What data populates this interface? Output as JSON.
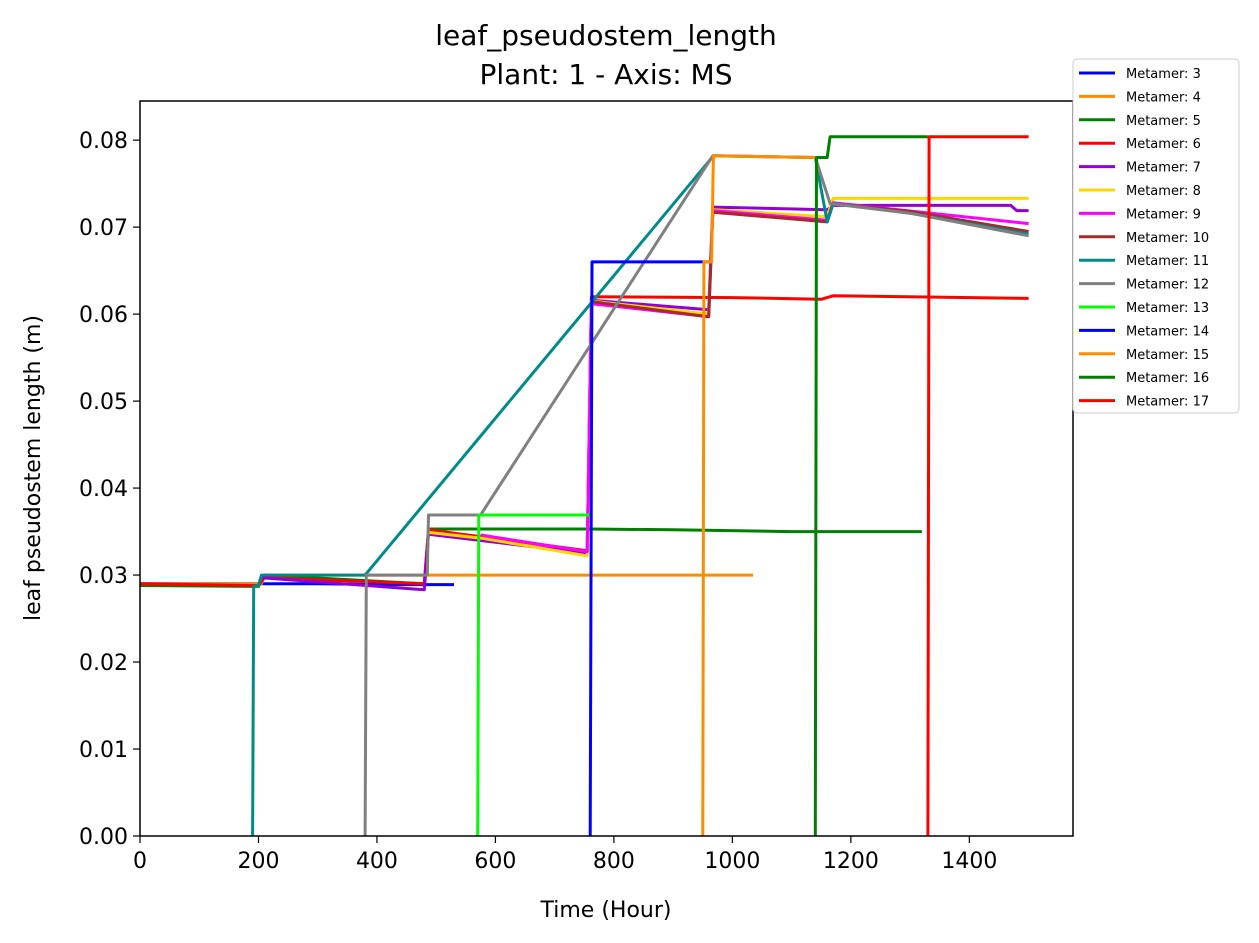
{
  "chart_data": {
    "type": "line",
    "title": "leaf_pseudostem_length",
    "subtitle": "Plant: 1 - Axis: MS",
    "xlabel": "Time (Hour)",
    "ylabel": "leaf pseudostem length (m)",
    "xlim": [
      0,
      1575
    ],
    "ylim": [
      0,
      0.0845
    ],
    "xticks": [
      0,
      200,
      400,
      600,
      800,
      1000,
      1200,
      1400
    ],
    "yticks": [
      0.0,
      0.01,
      0.02,
      0.03,
      0.04,
      0.05,
      0.06,
      0.07,
      0.08
    ],
    "ytick_labels": [
      "0.00",
      "0.01",
      "0.02",
      "0.03",
      "0.04",
      "0.05",
      "0.06",
      "0.07",
      "0.08"
    ],
    "grid": false,
    "legend_position": "outside-top-right",
    "series": [
      {
        "name": "Metamer: 3",
        "color": "#0000ff",
        "points": [
          [
            0,
            0.029
          ],
          [
            200,
            0.029
          ],
          [
            300,
            0.029
          ],
          [
            420,
            0.0289
          ],
          [
            480,
            0.0289
          ],
          [
            530,
            0.0289
          ]
        ]
      },
      {
        "name": "Metamer: 4",
        "color": "#ff8c00",
        "points": [
          [
            0,
            0.029
          ],
          [
            205,
            0.029
          ],
          [
            210,
            0.03
          ],
          [
            500,
            0.03
          ],
          [
            800,
            0.03
          ],
          [
            1035,
            0.03
          ]
        ]
      },
      {
        "name": "Metamer: 5",
        "color": "#008000",
        "points": [
          [
            0,
            0.0288
          ],
          [
            200,
            0.0287
          ],
          [
            210,
            0.03
          ],
          [
            480,
            0.029
          ],
          [
            487,
            0.0353
          ],
          [
            760,
            0.0353
          ],
          [
            900,
            0.0352
          ],
          [
            1100,
            0.035
          ],
          [
            1320,
            0.035
          ]
        ]
      },
      {
        "name": "Metamer: 6",
        "color": "#ff0000",
        "points": [
          [
            0,
            0.029
          ],
          [
            200,
            0.0288
          ],
          [
            210,
            0.0297
          ],
          [
            480,
            0.029
          ],
          [
            487,
            0.0352
          ],
          [
            755,
            0.0328
          ],
          [
            762,
            0.062
          ],
          [
            1000,
            0.0619
          ],
          [
            1150,
            0.0617
          ],
          [
            1170,
            0.0621
          ],
          [
            1500,
            0.0618
          ]
        ]
      },
      {
        "name": "Metamer: 7",
        "color": "#9400d3",
        "points": [
          [
            205,
            0.0297
          ],
          [
            480,
            0.0283
          ],
          [
            487,
            0.0347
          ],
          [
            755,
            0.0325
          ],
          [
            762,
            0.0616
          ],
          [
            960,
            0.0605
          ],
          [
            967,
            0.0723
          ],
          [
            1160,
            0.072
          ],
          [
            1170,
            0.0725
          ],
          [
            1470,
            0.0725
          ],
          [
            1480,
            0.0719
          ],
          [
            1500,
            0.0719
          ]
        ]
      },
      {
        "name": "Metamer: 8",
        "color": "#ffd700",
        "points": [
          [
            487,
            0.0349
          ],
          [
            580,
            0.0342
          ],
          [
            755,
            0.0322
          ],
          [
            762,
            0.0615
          ],
          [
            960,
            0.06
          ],
          [
            967,
            0.072
          ],
          [
            1160,
            0.0712
          ],
          [
            1170,
            0.0733
          ],
          [
            1500,
            0.0733
          ]
        ]
      },
      {
        "name": "Metamer: 9",
        "color": "#ff00ff",
        "points": [
          [
            575,
            0.0346
          ],
          [
            755,
            0.0327
          ],
          [
            762,
            0.0612
          ],
          [
            960,
            0.0597
          ],
          [
            967,
            0.0719
          ],
          [
            1160,
            0.0708
          ],
          [
            1170,
            0.0728
          ],
          [
            1500,
            0.0704
          ]
        ]
      },
      {
        "name": "Metamer: 10",
        "color": "#a52a2a",
        "points": [
          [
            765,
            0.0614
          ],
          [
            960,
            0.0597
          ],
          [
            967,
            0.0717
          ],
          [
            1160,
            0.0706
          ],
          [
            1170,
            0.0727
          ],
          [
            1300,
            0.0718
          ],
          [
            1500,
            0.0695
          ]
        ]
      },
      {
        "name": "Metamer: 11",
        "color": "#008b8b",
        "points": [
          [
            190,
            0.0
          ],
          [
            192,
            0.0287
          ],
          [
            200,
            0.0288
          ],
          [
            205,
            0.03
          ],
          [
            380,
            0.03
          ],
          [
            968,
            0.0782
          ],
          [
            1140,
            0.078
          ],
          [
            1160,
            0.0706
          ],
          [
            1170,
            0.0727
          ],
          [
            1300,
            0.0716
          ],
          [
            1500,
            0.0692
          ]
        ]
      },
      {
        "name": "Metamer: 12",
        "color": "#808080",
        "points": [
          [
            380,
            0.0
          ],
          [
            382,
            0.03
          ],
          [
            485,
            0.03
          ],
          [
            487,
            0.0369
          ],
          [
            575,
            0.0369
          ],
          [
            967,
            0.0782
          ],
          [
            1140,
            0.078
          ],
          [
            1165,
            0.0727
          ],
          [
            1300,
            0.0716
          ],
          [
            1500,
            0.069
          ]
        ]
      },
      {
        "name": "Metamer: 13",
        "color": "#00ff00",
        "points": [
          [
            570,
            0.0
          ],
          [
            572,
            0.0369
          ],
          [
            760,
            0.0369
          ]
        ]
      },
      {
        "name": "Metamer: 14",
        "color": "#0000ff",
        "points": [
          [
            760,
            0.0
          ],
          [
            763,
            0.066
          ],
          [
            960,
            0.066
          ]
        ]
      },
      {
        "name": "Metamer: 15",
        "color": "#ff8c00",
        "points": [
          [
            950,
            0.0
          ],
          [
            952,
            0.066
          ],
          [
            965,
            0.066
          ],
          [
            968,
            0.0782
          ],
          [
            1140,
            0.078
          ]
        ]
      },
      {
        "name": "Metamer: 16",
        "color": "#008000",
        "points": [
          [
            1140,
            0.0
          ],
          [
            1142,
            0.078
          ],
          [
            1160,
            0.078
          ],
          [
            1165,
            0.0804
          ],
          [
            1330,
            0.0804
          ]
        ]
      },
      {
        "name": "Metamer: 17",
        "color": "#ff0000",
        "points": [
          [
            1330,
            0.0
          ],
          [
            1332,
            0.0804
          ],
          [
            1500,
            0.0804
          ]
        ]
      }
    ]
  }
}
